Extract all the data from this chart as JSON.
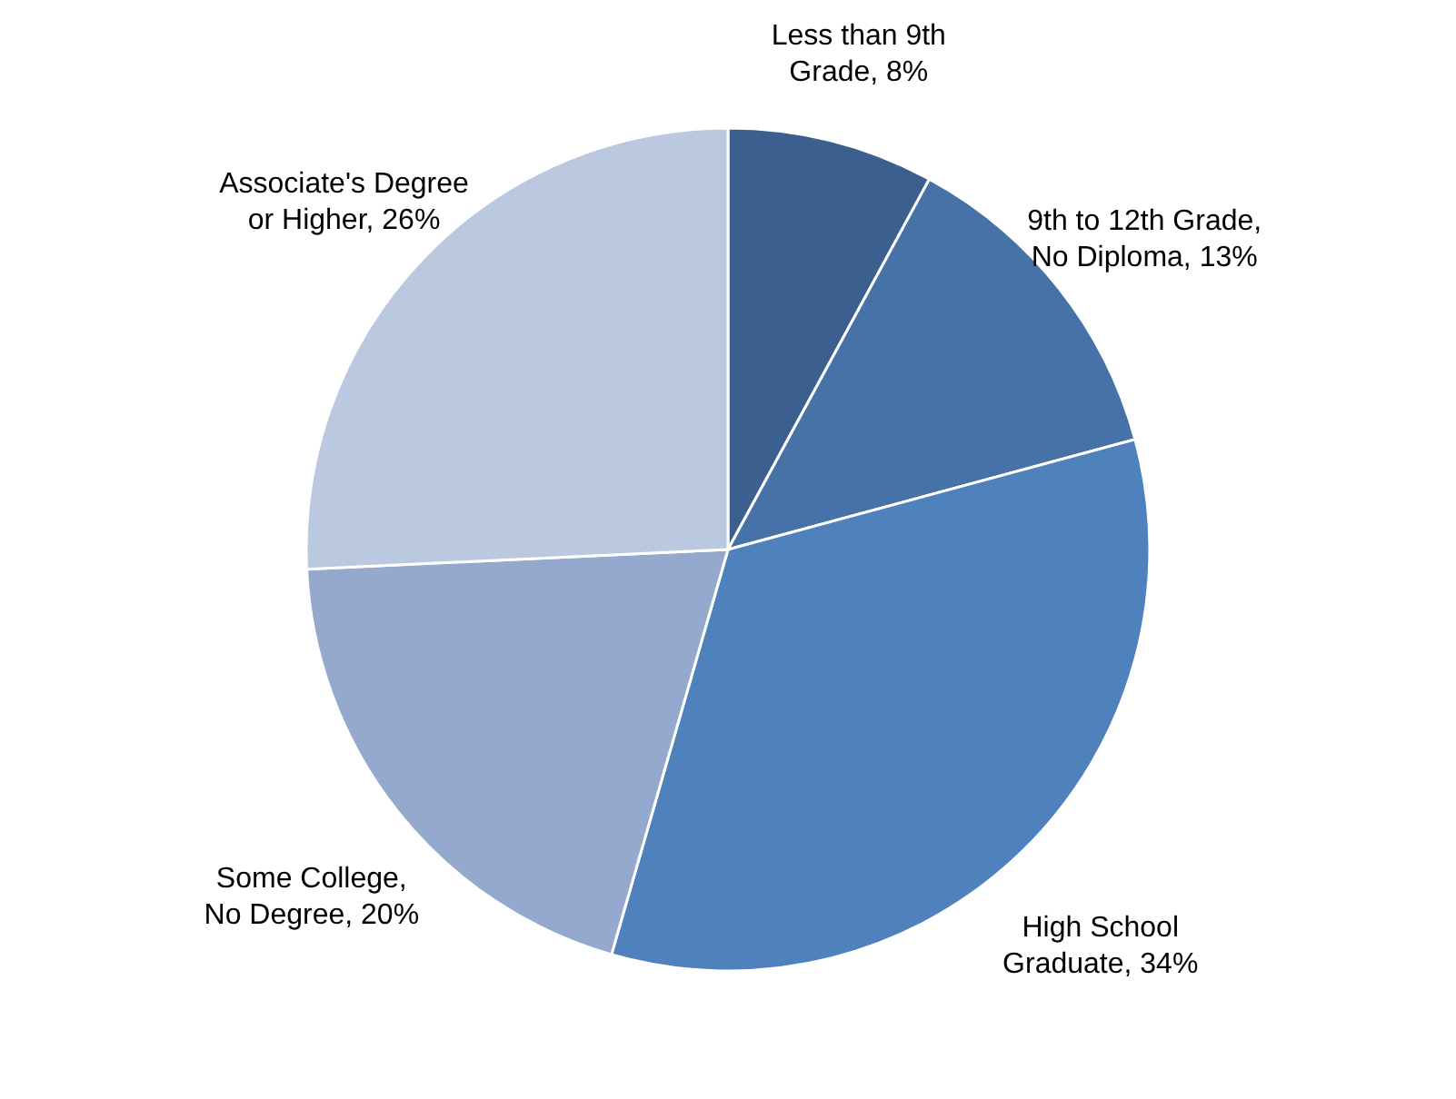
{
  "chart_data": {
    "type": "pie",
    "categories": [
      "Less than 9th Grade",
      "9th to 12th Grade, No Diploma",
      "High School Graduate",
      "Some College, No Degree",
      "Associate's Degree or Higher"
    ],
    "values": [
      8,
      13,
      34,
      20,
      26
    ],
    "colors": [
      "#3b5f8f",
      "#4672a8",
      "#4f81bd",
      "#95a9cf",
      "#bac8e0"
    ],
    "value_labels": [
      "8%",
      "13%",
      "34%",
      "20%",
      "26%"
    ]
  }
}
